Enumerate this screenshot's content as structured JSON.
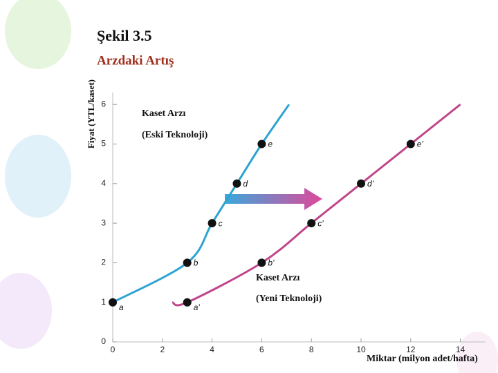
{
  "chart_data": {
    "type": "line",
    "title": "Şekil 3.5",
    "subtitle": "Arzdaki Artış",
    "x_label": "Miktar (milyon adet/hafta)",
    "y_label": "Fiyat (YTL/kaset)",
    "annotations": [
      "Kaset Arzı",
      "(Eski Teknoloji)",
      "Kaset Arzı",
      "(Yeni Teknoloji)"
    ],
    "xlim": [
      0,
      15
    ],
    "ylim": [
      0,
      6.3
    ],
    "xticks": [
      0,
      2,
      4,
      6,
      8,
      10,
      12,
      14
    ],
    "yticks": [
      0,
      1,
      2,
      3,
      4,
      5,
      6
    ],
    "grid": false,
    "series": [
      {
        "name": "Kaset Arzı (Eski Teknoloji)",
        "color": "#2ea3d0",
        "x": [
          0,
          3,
          4,
          5,
          6,
          7.1
        ],
        "values": [
          1,
          2,
          3,
          4,
          5,
          6
        ],
        "point_labels": [
          "a",
          "b",
          "c",
          "d",
          "e",
          null
        ]
      },
      {
        "name": "Kaset Arzı (Yeni Teknoloji)",
        "color": "#c0468a",
        "x": [
          2.4,
          3,
          6,
          8,
          10,
          12,
          14
        ],
        "values": [
          1,
          1,
          2,
          3,
          4,
          5,
          6
        ],
        "point_labels": [
          null,
          "a'",
          "b'",
          "c'",
          "d'",
          "e'",
          null
        ]
      }
    ]
  }
}
